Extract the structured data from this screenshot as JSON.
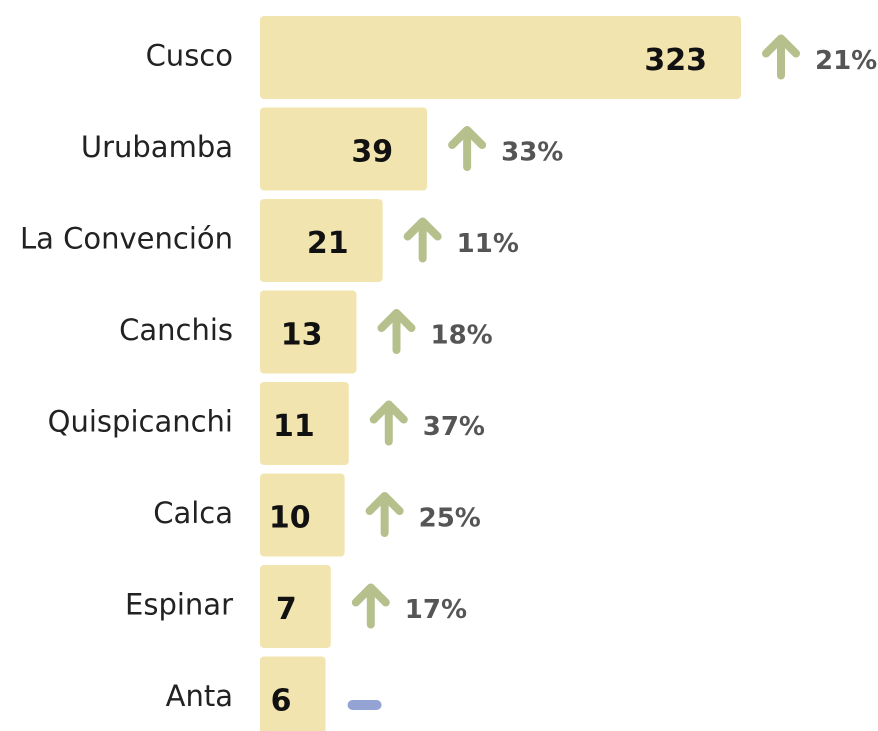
{
  "chart_data": {
    "type": "bar",
    "orientation": "horizontal",
    "categories": [
      "Cusco",
      "Urubamba",
      "La Convención",
      "Canchis",
      "Quispicanchi",
      "Calca",
      "Espinar",
      "Anta"
    ],
    "values": [
      323,
      39,
      21,
      13,
      11,
      10,
      7,
      6
    ],
    "color": "#f2e4ae",
    "xscale": "sqrt",
    "xlim": [
      0,
      323
    ],
    "changes": [
      21,
      33,
      11,
      18,
      37,
      25,
      17,
      null
    ],
    "change_labels": [
      "21%",
      "33%",
      "11%",
      "18%",
      "37%",
      "25%",
      "17%",
      null
    ],
    "change_up_color": "#b5c08c",
    "change_none_color": "#93a3d4"
  }
}
